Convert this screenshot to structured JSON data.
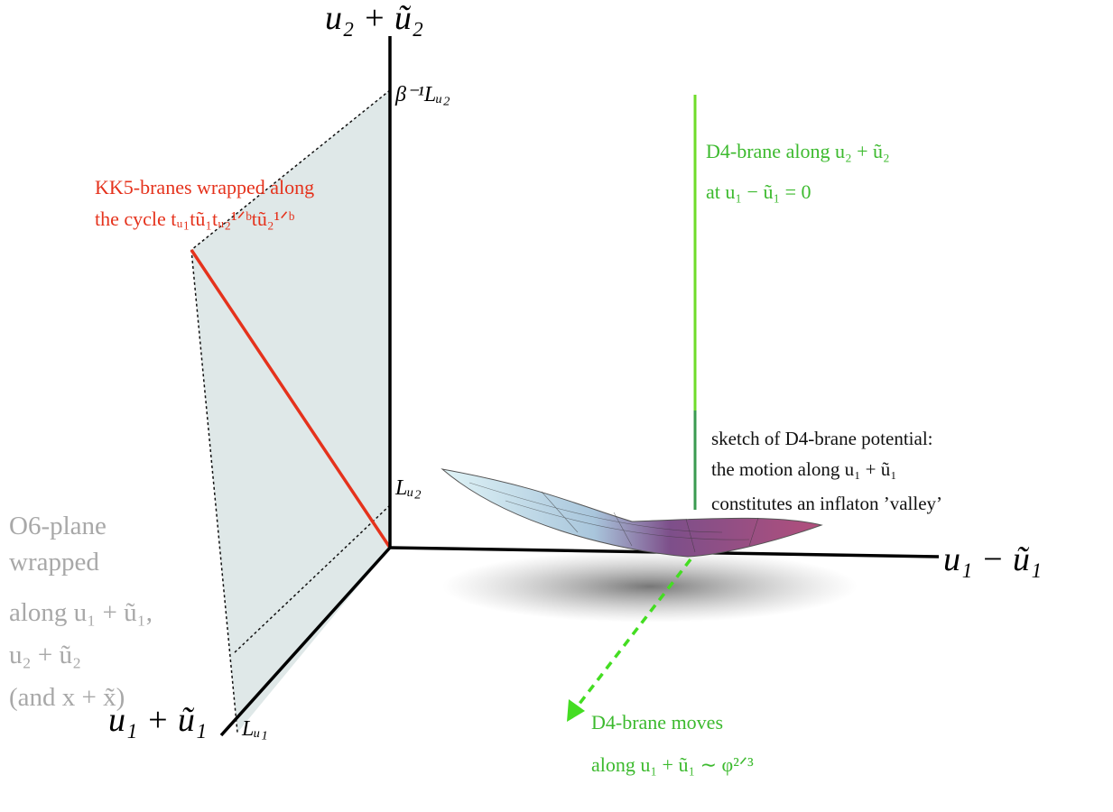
{
  "axes": {
    "vertical": "u₂ + ũ₂",
    "horizontal": "u₁ − ũ₁",
    "depth": "u₁ + ũ₁"
  },
  "marks": {
    "top": "β⁻¹Lᵤ₂",
    "middle": "Lᵤ₂",
    "bottom": "Lᵤ₁"
  },
  "kk5_label": [
    "KK5-branes wrapped along",
    "the cycle tᵤ₁tũ₁tᵤ₂¹ᐟᵇtũ₂¹ᐟᵇ"
  ],
  "d4_label": [
    "D4-brane along u₂ + ũ₂",
    "at u₁ − ũ₁ = 0"
  ],
  "potential_label": [
    "sketch of D4-brane potential:",
    "the motion along u₁ + ũ₁",
    "constitutes an inflaton ’valley’"
  ],
  "o6_label": [
    "O6-plane",
    "wrapped",
    "along u₁ + ũ₁,",
    "u₂ + ũ₂",
    "(and x + x̃)"
  ],
  "moves_label": [
    "D4-brane moves",
    "along u₁ + ũ₁ ∼ φ²ᐟ³"
  ]
}
